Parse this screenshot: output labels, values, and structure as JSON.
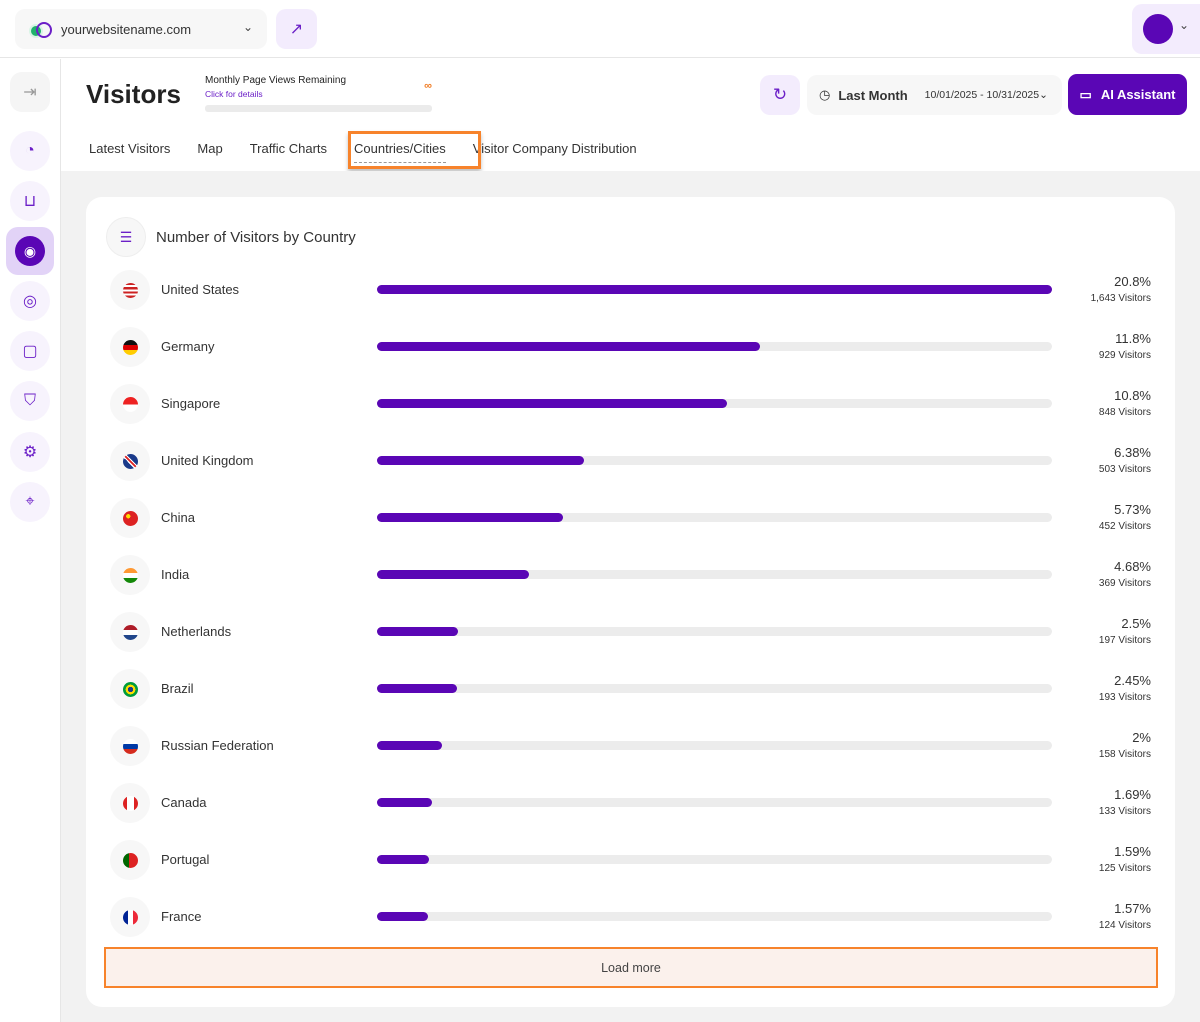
{
  "topbar": {
    "site": "yourwebsitename.com"
  },
  "header": {
    "title": "Visitors",
    "quota_label": "Monthly Page Views Remaining",
    "quota_link": "Click for details",
    "quota_value": "∞",
    "range_label": "Last Month",
    "range_dates": "10/01/2025 - 10/31/2025",
    "ai_label": "AI Assistant"
  },
  "tabs": [
    "Latest Visitors",
    "Map",
    "Traffic Charts",
    "Countries/Cities",
    "Visitor Company Distribution"
  ],
  "active_tab": "Countries/Cities",
  "card": {
    "title": "Number of Visitors by Country",
    "load_more": "Load more"
  },
  "colors": {
    "accent": "#5a06b5",
    "highlight": "#f7832b"
  },
  "chart_data": {
    "type": "bar",
    "title": "Number of Visitors by Country",
    "categories": [
      "United States",
      "Germany",
      "Singapore",
      "United Kingdom",
      "China",
      "India",
      "Netherlands",
      "Brazil",
      "Russian Federation",
      "Canada",
      "Portugal",
      "France"
    ],
    "percent_labels": [
      "20.8%",
      "11.8%",
      "10.8%",
      "6.38%",
      "5.73%",
      "4.68%",
      "2.5%",
      "2.45%",
      "2%",
      "1.69%",
      "1.59%",
      "1.57%"
    ],
    "percents": [
      20.8,
      11.8,
      10.8,
      6.38,
      5.73,
      4.68,
      2.5,
      2.45,
      2,
      1.69,
      1.59,
      1.57
    ],
    "visitor_labels": [
      "1,643 Visitors",
      "929 Visitors",
      "848 Visitors",
      "503 Visitors",
      "452 Visitors",
      "369 Visitors",
      "197 Visitors",
      "193 Visitors",
      "158 Visitors",
      "133 Visitors",
      "125 Visitors",
      "124 Visitors"
    ],
    "values": [
      1643,
      929,
      848,
      503,
      452,
      369,
      197,
      193,
      158,
      133,
      125,
      124
    ]
  }
}
